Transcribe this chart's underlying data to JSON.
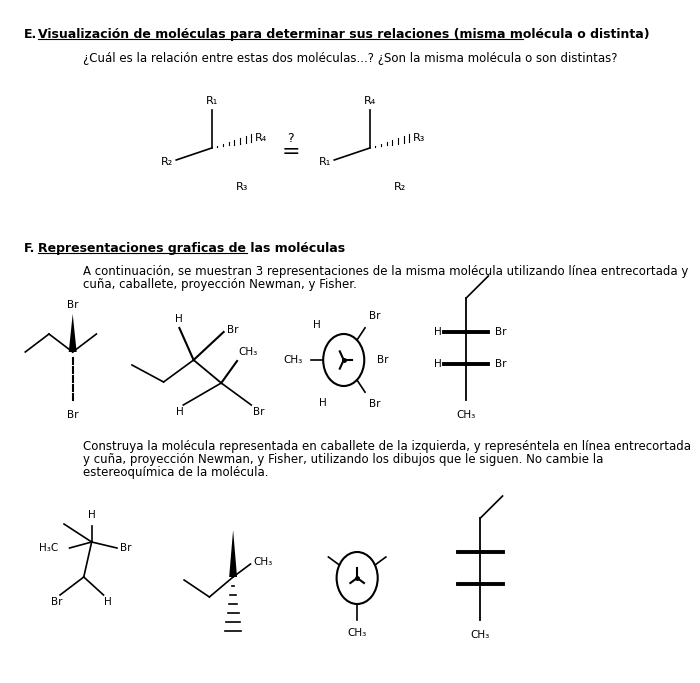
{
  "bg_color": "#ffffff",
  "section_E_label": "E.",
  "section_E_title": "Visualización de moléculas para determinar sus relaciones (misma molécula o distinta)",
  "section_E_question": "¿Cuál es la relación entre estas dos moléculas...? ¿Son la misma molécula o son distintas?",
  "section_F_label": "F.",
  "section_F_title": "Representaciones graficas de las moléculas",
  "section_F_text1": "A continuación, se muestran 3 representaciones de la misma molécula utilizando línea entrecortada y",
  "section_F_text2": "cuña, caballete, proyección Newman, y Fisher.",
  "section_F_text3": "Construya la molécula representada en caballete de la izquierda, y represéntela en línea entrecortada",
  "section_F_text4": "y cuña, proyección Newman, y Fisher, utilizando los dibujos que le siguen. No cambie la",
  "section_F_text5": "estereoquímica de la molécula.",
  "text_color": "#000000",
  "title_fontsize": 9,
  "body_fontsize": 8.5,
  "label_fontsize": 9
}
